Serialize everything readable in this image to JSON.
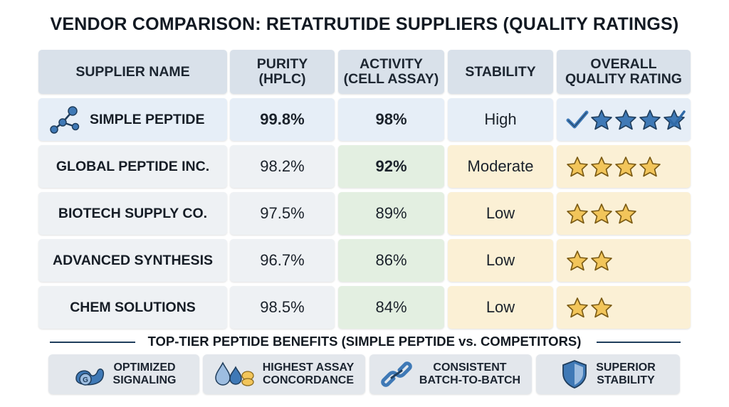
{
  "title": "VENDOR COMPARISON: RETATRUTIDE SUPPLIERS (QUALITY RATINGS)",
  "chart_data": {
    "type": "table",
    "columns": [
      "SUPPLIER NAME",
      "PURITY\n(HPLC)",
      "ACTIVITY\n(CELL ASSAY)",
      "STABILITY",
      "OVERALL\nQUALITY RATING"
    ],
    "rows": [
      {
        "supplier": "SIMPLE PEPTIDE",
        "purity": "99.8%",
        "activity": "98%",
        "stability": "High",
        "rating": 5,
        "highlight": true
      },
      {
        "supplier": "GLOBAL PEPTIDE INC.",
        "purity": "98.2%",
        "activity": "92%",
        "stability": "Moderate",
        "rating": 4
      },
      {
        "supplier": "BIOTECH SUPPLY CO.",
        "purity": "97.5%",
        "activity": "89%",
        "stability": "Low",
        "rating": 3
      },
      {
        "supplier": "ADVANCED SYNTHESIS",
        "purity": "96.7%",
        "activity": "86%",
        "stability": "Low",
        "rating": 2
      },
      {
        "supplier": "CHEM SOLUTIONS",
        "purity": "98.5%",
        "activity": "84%",
        "stability": "Low",
        "rating": 2
      }
    ]
  },
  "benefits": {
    "title": "TOP-TIER PEPTIDE BENEFITS (SIMPLE PEPTIDE vs. COMPETITORS)",
    "items": [
      {
        "label": "OPTIMIZED\nSIGNALING",
        "icon": "receptor-icon",
        "icon_letter": "G"
      },
      {
        "label": "HIGHEST ASSAY\nCONCORDANCE",
        "icon": "droplets-icon"
      },
      {
        "label": "CONSISTENT\nBATCH-TO-BATCH",
        "icon": "chain-link-icon"
      },
      {
        "label": "SUPERIOR\nSTABILITY",
        "icon": "shield-icon"
      }
    ]
  },
  "colors": {
    "header": "#d9e1ea",
    "highlight_row": "#e6eef7",
    "activity": "#e3efe1",
    "stability_rating": "#fbf0d5",
    "blue_star": "#3f79b6",
    "gold_star": "#f2c55a",
    "navy": "#1f3d5c"
  }
}
